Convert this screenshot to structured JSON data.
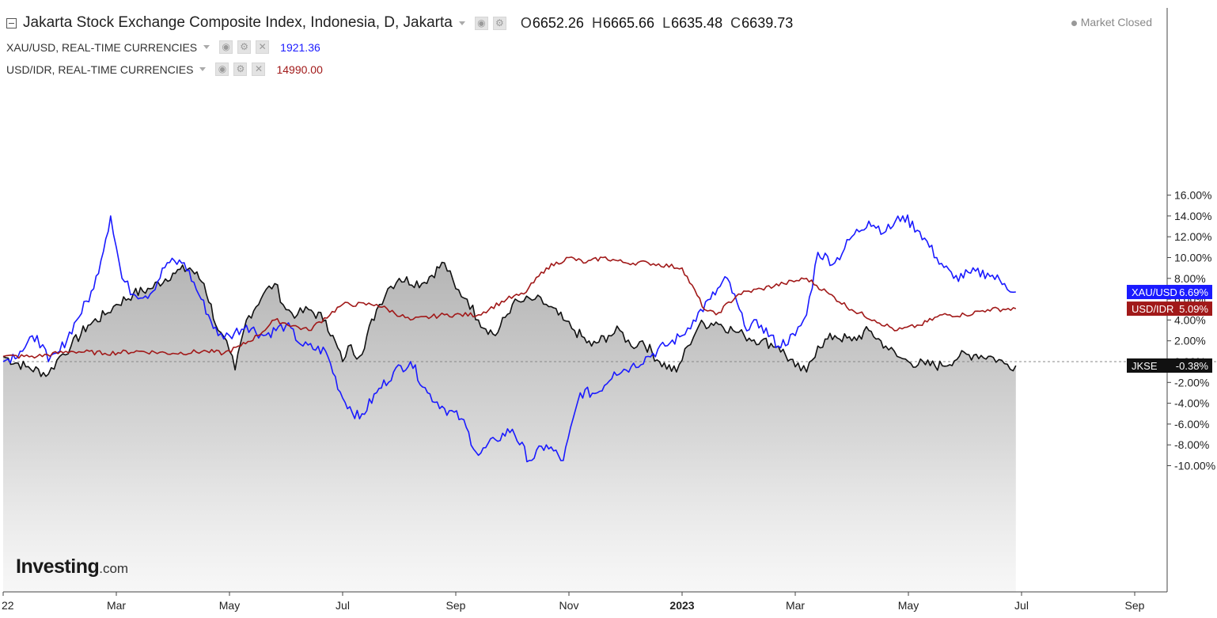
{
  "header": {
    "title": "Jakarta Stock Exchange Composite Index, Indonesia, D, Jakarta",
    "ohlc": [
      {
        "label": "O",
        "value": "6652.26"
      },
      {
        "label": "H",
        "value": "6665.66"
      },
      {
        "label": "L",
        "value": "6635.48"
      },
      {
        "label": "C",
        "value": "6639.73"
      }
    ],
    "market_status": "Market Closed"
  },
  "overlays": [
    {
      "label": "XAU/USD, REAL-TIME CURRENCIES",
      "value": "1921.36",
      "color": "#1a1aff"
    },
    {
      "label": "USD/IDR, REAL-TIME CURRENCIES",
      "value": "14990.00",
      "color": "#a11919"
    }
  ],
  "logo": {
    "name": "Investing",
    "suffix": ".com"
  },
  "chart_data": {
    "type": "line",
    "ylim": [
      -12,
      16.5
    ],
    "y_ticks": [
      "16.00%",
      "14.00%",
      "12.00%",
      "10.00%",
      "8.00%",
      "6.00%",
      "4.00%",
      "2.00%",
      "0.00%",
      "-2.00%",
      "-4.00%",
      "-6.00%",
      "-8.00%",
      "-10.00%"
    ],
    "y_tick_values": [
      16,
      14,
      12,
      10,
      8,
      6,
      4,
      2,
      0,
      -2,
      -4,
      -6,
      -8,
      -10
    ],
    "x_ticks": [
      "22",
      "Mar",
      "May",
      "Jul",
      "Sep",
      "Nov",
      "2023",
      "Mar",
      "May",
      "Jul",
      "Sep"
    ],
    "x_tick_months": [
      0,
      2,
      4,
      6,
      8,
      10,
      12,
      14,
      16,
      18,
      20
    ],
    "series": [
      {
        "name": "JKSE",
        "label": "-0.38%",
        "color": "#111111",
        "area": true,
        "x": [
          0,
          0.4,
          0.8,
          1.0,
          1.2,
          1.5,
          1.8,
          2.0,
          2.3,
          2.6,
          3.0,
          3.3,
          3.55,
          3.8,
          4.0,
          4.1,
          4.3,
          4.6,
          4.8,
          5.0,
          5.2,
          5.4,
          5.7,
          6.0,
          6.1,
          6.3,
          6.6,
          6.8,
          7.0,
          7.4,
          7.8,
          8.0,
          8.2,
          8.4,
          8.7,
          9.0,
          9.2,
          9.4,
          9.6,
          9.9,
          10.1,
          10.4,
          10.7,
          10.9,
          11.1,
          11.3,
          11.6,
          11.9,
          12.1,
          12.3,
          12.6,
          12.9,
          13.1,
          13.4,
          13.7,
          14.0,
          14.2,
          14.4,
          14.7,
          15.0,
          15.3,
          15.6,
          15.8,
          16.0,
          16.3,
          16.6,
          16.9,
          17.2,
          17.5,
          17.7,
          17.9
        ],
        "y": [
          0.5,
          -0.5,
          -1.2,
          0.5,
          1.5,
          3.5,
          4.5,
          5.5,
          6.5,
          7.0,
          8.5,
          9.0,
          7.5,
          3.0,
          1.0,
          -0.8,
          4.0,
          6.5,
          7.5,
          5.0,
          4.5,
          5.0,
          4.0,
          0.0,
          1.5,
          0.5,
          5.0,
          7.0,
          8.0,
          7.5,
          9.5,
          7.0,
          6.0,
          4.0,
          2.5,
          5.5,
          5.8,
          6.0,
          5.5,
          4.0,
          3.0,
          1.5,
          2.5,
          3.0,
          1.5,
          2.0,
          0.0,
          -1.0,
          1.5,
          3.5,
          3.8,
          3.0,
          2.5,
          2.0,
          1.5,
          -0.5,
          -1.0,
          1.5,
          2.5,
          2.0,
          3.0,
          1.5,
          0.5,
          0.0,
          -0.3,
          -0.4,
          0.5,
          0.7,
          0.4,
          -0.2,
          -0.38
        ]
      },
      {
        "name": "XAU/USD",
        "label": "6.69%",
        "color": "#1a1aff",
        "area": false,
        "x": [
          0,
          0.3,
          0.6,
          0.8,
          1.0,
          1.3,
          1.6,
          1.9,
          2.1,
          2.3,
          2.6,
          2.9,
          3.2,
          3.5,
          3.8,
          4.0,
          4.3,
          4.6,
          5.0,
          5.3,
          5.7,
          6.0,
          6.3,
          6.6,
          6.9,
          7.2,
          7.5,
          7.8,
          8.1,
          8.4,
          8.7,
          9.0,
          9.3,
          9.6,
          9.9,
          10.2,
          10.5,
          10.8,
          11.1,
          11.4,
          11.7,
          12.0,
          12.2,
          12.5,
          12.8,
          13.1,
          13.4,
          13.7,
          14.0,
          14.2,
          14.4,
          14.7,
          15.0,
          15.3,
          15.6,
          15.9,
          16.2,
          16.5,
          16.8,
          17.1,
          17.4,
          17.7,
          17.9
        ],
        "y": [
          0.0,
          1.0,
          2.5,
          0.0,
          1.0,
          4.0,
          7.0,
          14.0,
          8.0,
          6.5,
          6.5,
          9.5,
          9.5,
          6.0,
          2.5,
          2.5,
          3.5,
          2.5,
          3.5,
          1.5,
          1.0,
          -3.5,
          -5.5,
          -3.0,
          -1.0,
          0.0,
          -3.0,
          -4.5,
          -5.5,
          -9.0,
          -7.5,
          -6.5,
          -9.5,
          -8.0,
          -9.5,
          -3.0,
          -3.0,
          -1.0,
          -0.5,
          0.5,
          1.5,
          2.5,
          4.0,
          6.0,
          8.0,
          3.5,
          3.5,
          1.5,
          2.5,
          4.5,
          10.5,
          9.5,
          12.0,
          13.5,
          12.5,
          14.0,
          12.5,
          10.0,
          8.0,
          8.5,
          8.5,
          7.5,
          6.69
        ]
      },
      {
        "name": "USD/IDR",
        "label": "5.09%",
        "color": "#a11919",
        "area": false,
        "x": [
          0,
          0.6,
          1.2,
          1.8,
          2.4,
          3.0,
          3.6,
          3.9,
          4.2,
          4.5,
          4.8,
          5.4,
          6.0,
          6.6,
          7.2,
          7.8,
          8.4,
          8.9,
          9.2,
          9.6,
          10.0,
          10.3,
          10.6,
          11.0,
          11.4,
          12.0,
          12.4,
          12.6,
          13.0,
          13.4,
          13.8,
          14.2,
          14.6,
          15.0,
          15.4,
          15.8,
          16.2,
          16.6,
          17.0,
          17.4,
          17.9
        ],
        "y": [
          0.5,
          0.5,
          1.0,
          0.8,
          1.0,
          0.8,
          1.0,
          0.8,
          1.5,
          2.5,
          4.0,
          3.0,
          5.5,
          5.5,
          4.0,
          4.5,
          4.5,
          6.0,
          6.5,
          9.0,
          10.0,
          9.5,
          10.0,
          9.5,
          9.5,
          9.0,
          5.0,
          4.5,
          6.5,
          7.0,
          7.5,
          8.0,
          6.5,
          5.0,
          4.0,
          3.0,
          3.5,
          4.5,
          4.5,
          5.0,
          5.09
        ]
      }
    ]
  }
}
